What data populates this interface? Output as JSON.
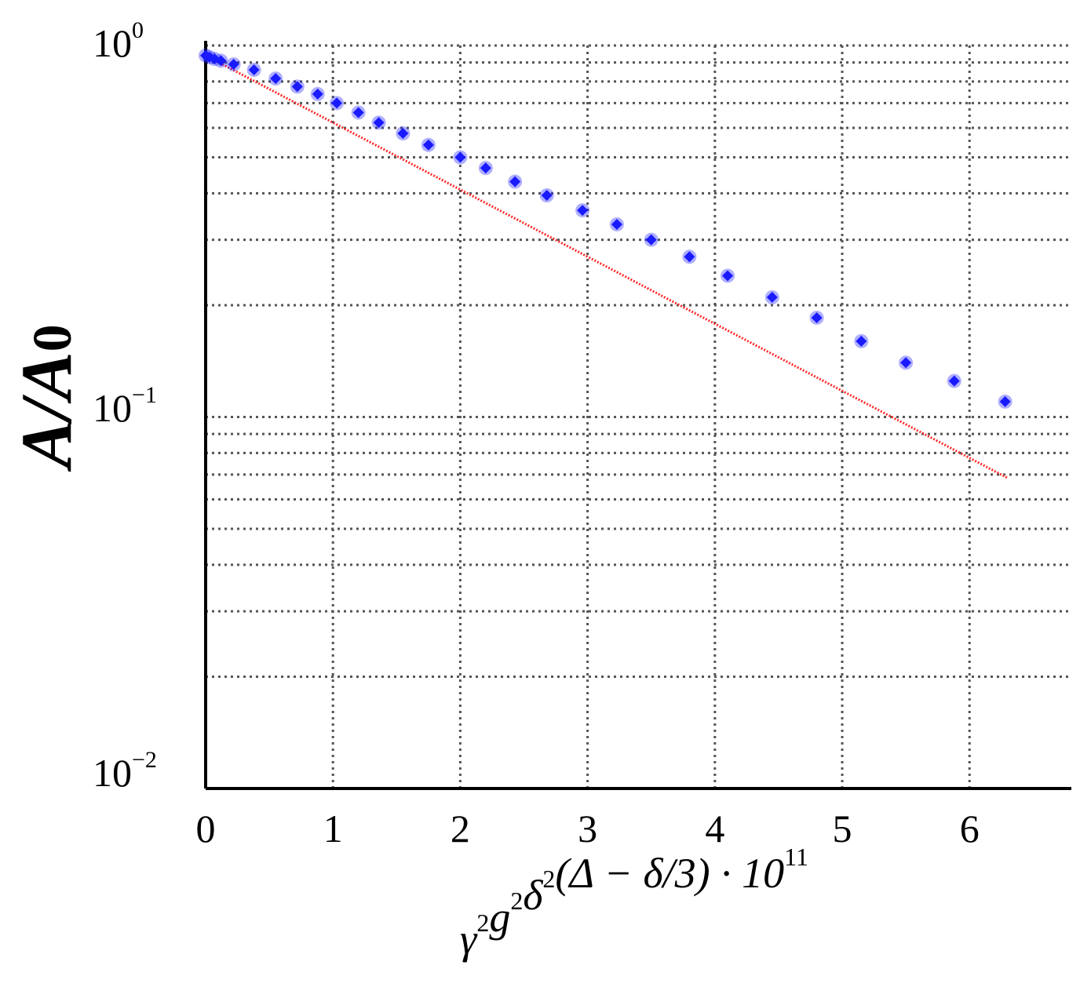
{
  "chart_data": {
    "type": "scatter",
    "xlabel": {
      "parts": [
        {
          "text": "γ",
          "sup": "2"
        },
        {
          "text": "g",
          "sup": "2"
        },
        {
          "text": "δ",
          "sup": "2"
        },
        {
          "text": "(Δ − δ/3) · 10",
          "sup": "11"
        }
      ]
    },
    "ylabel": {
      "base": "A/A",
      "sub": "0"
    },
    "xlim": [
      0,
      6.8
    ],
    "ylim": [
      0.01,
      1
    ],
    "y_scale": "log",
    "grid": true,
    "x_ticks": [
      "0",
      "1",
      "2",
      "3",
      "4",
      "5",
      "6"
    ],
    "y_ticks": [
      {
        "value": 1,
        "base": "10",
        "exp": "0"
      },
      {
        "value": 0.1,
        "base": "10",
        "exp": "−1"
      },
      {
        "value": 0.01,
        "base": "10",
        "exp": "−2"
      }
    ],
    "colors": {
      "points": "#1a1aff",
      "fit": "#ff2a2a",
      "grid": "#555555",
      "axes": "#000000"
    },
    "series": [
      {
        "kind": "points",
        "x": [
          0.0,
          0.03,
          0.07,
          0.12,
          0.22,
          0.38,
          0.55,
          0.72,
          0.88,
          1.03,
          1.2,
          1.36,
          1.55,
          1.75,
          2.0,
          2.2,
          2.43,
          2.68,
          2.96,
          3.23,
          3.5,
          3.8,
          4.1,
          4.45,
          4.8,
          5.15,
          5.5,
          5.88,
          6.28
        ],
        "y": [
          0.94,
          0.93,
          0.92,
          0.91,
          0.89,
          0.86,
          0.815,
          0.775,
          0.74,
          0.7,
          0.66,
          0.62,
          0.58,
          0.54,
          0.5,
          0.468,
          0.43,
          0.395,
          0.36,
          0.33,
          0.3,
          0.27,
          0.24,
          0.21,
          0.185,
          0.16,
          0.14,
          0.125,
          0.11
        ]
      },
      {
        "kind": "fit",
        "x": [
          0.0,
          6.3
        ],
        "y": [
          0.94,
          0.0685
        ]
      }
    ]
  }
}
